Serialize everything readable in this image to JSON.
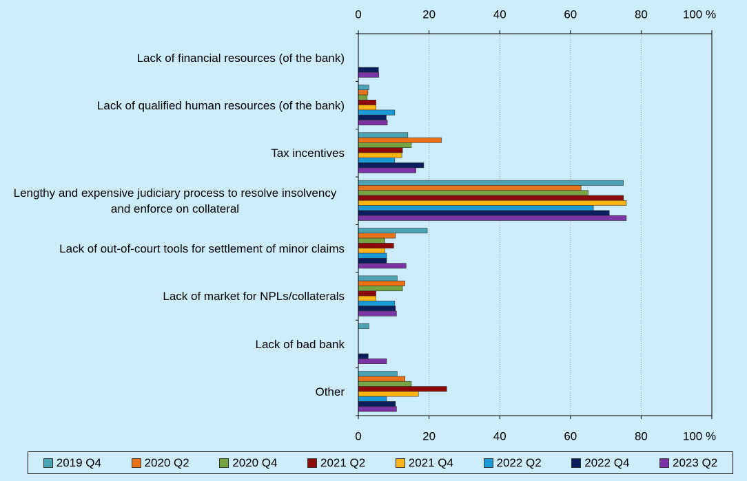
{
  "chart_data": {
    "type": "hbar",
    "categories": [
      "Lack of financial resources (of the bank)",
      "Lack of qualified human resources (of the bank)",
      "Tax incentives",
      "Lengthy and expensive judiciary process to resolve insolvency and enforce on collateral",
      "Lack of out-of-court tools for settlement of minor claims",
      "Lack of market for NPLs/collaterals",
      "Lack of bad bank",
      "Other"
    ],
    "series": [
      {
        "name": "2019 Q4",
        "color": "#4ba3b4",
        "values": [
          0,
          3,
          14,
          75,
          19.5,
          11,
          3,
          11
        ]
      },
      {
        "name": "2020 Q2",
        "color": "#e8731a",
        "values": [
          0,
          2.7,
          23.5,
          63,
          10.5,
          13.2,
          0,
          13.2
        ]
      },
      {
        "name": "2020 Q4",
        "color": "#77a443",
        "values": [
          0,
          2.5,
          15,
          65,
          7.5,
          12.5,
          0,
          15
        ]
      },
      {
        "name": "2021 Q2",
        "color": "#8b0a0a",
        "values": [
          0,
          5,
          12.5,
          75,
          10,
          5,
          0,
          25
        ]
      },
      {
        "name": "2021 Q4",
        "color": "#fdb515",
        "values": [
          0,
          5,
          12.3,
          75.8,
          7.5,
          5,
          0,
          17
        ]
      },
      {
        "name": "2022 Q2",
        "color": "#1b9ad8",
        "values": [
          0,
          10.3,
          10.3,
          66.5,
          8,
          10.3,
          0,
          8
        ]
      },
      {
        "name": "2022 Q4",
        "color": "#0b1f5e",
        "values": [
          5.7,
          7.9,
          18.5,
          71,
          8,
          10.5,
          2.8,
          10.5
        ]
      },
      {
        "name": "2023 Q2",
        "color": "#7b34a6",
        "values": [
          5.8,
          8.2,
          16.3,
          75.8,
          13.5,
          10.8,
          8,
          10.8
        ]
      }
    ],
    "xlim": [
      0,
      100
    ],
    "xticks": [
      0,
      20,
      40,
      60,
      80,
      {
        "value": 100,
        "label": "100 %"
      }
    ],
    "grid": true
  }
}
